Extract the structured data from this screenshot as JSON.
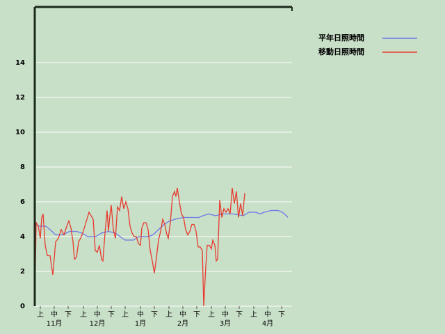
{
  "chart_data": {
    "type": "line",
    "xlim": [
      0,
      185
    ],
    "ylim": [
      0,
      17.2
    ],
    "yticks": [
      0,
      2,
      4,
      6,
      8,
      10,
      12,
      14
    ],
    "grid": true,
    "xticks": [
      {
        "value": 4,
        "label": "上"
      },
      {
        "value": 14,
        "label": "中"
      },
      {
        "value": 24,
        "label": "下"
      },
      {
        "value": 35,
        "label": "上"
      },
      {
        "value": 45,
        "label": "中"
      },
      {
        "value": 55,
        "label": "下"
      },
      {
        "value": 65,
        "label": "上"
      },
      {
        "value": 76,
        "label": "中"
      },
      {
        "value": 86,
        "label": "下"
      },
      {
        "value": 96.5,
        "label": "上"
      },
      {
        "value": 106.5,
        "label": "中"
      },
      {
        "value": 116.5,
        "label": "下"
      },
      {
        "value": 127,
        "label": "上"
      },
      {
        "value": 137,
        "label": "中"
      },
      {
        "value": 147,
        "label": "下"
      },
      {
        "value": 157.5,
        "label": "上"
      },
      {
        "value": 167.5,
        "label": "中"
      },
      {
        "value": 177.5,
        "label": "下"
      }
    ],
    "month_ticks": [
      {
        "value": 14,
        "label": "11月"
      },
      {
        "value": 45,
        "label": "12月"
      },
      {
        "value": 76,
        "label": "1月"
      },
      {
        "value": 106.5,
        "label": "2月"
      },
      {
        "value": 137,
        "label": "3月"
      },
      {
        "value": 167.5,
        "label": "4月"
      }
    ],
    "series": [
      {
        "name": "平年日照時間",
        "color": "#6b78e8",
        "x": [
          1,
          3,
          8,
          11,
          15,
          20,
          25,
          30,
          34,
          38,
          44,
          48,
          53,
          58,
          63,
          65,
          71,
          75,
          82,
          85,
          89,
          93,
          97,
          101,
          107,
          118,
          121,
          125,
          130,
          135,
          143,
          150,
          154,
          159,
          162,
          165,
          170,
          175,
          178,
          181,
          182
        ],
        "values": [
          4.7,
          4.6,
          4.6,
          4.4,
          4.1,
          4.1,
          4.3,
          4.3,
          4.2,
          4.0,
          4.0,
          4.2,
          4.3,
          4.2,
          3.9,
          3.8,
          3.8,
          4.0,
          4.0,
          4.1,
          4.4,
          4.7,
          4.9,
          5.0,
          5.1,
          5.1,
          5.2,
          5.3,
          5.2,
          5.3,
          5.3,
          5.2,
          5.4,
          5.4,
          5.3,
          5.4,
          5.5,
          5.5,
          5.4,
          5.2,
          5.1
        ]
      },
      {
        "name": "移動日照時間",
        "color": "#e83a2e",
        "x": [
          0,
          1,
          2.5,
          4,
          5,
          6,
          7.5,
          9,
          11,
          13,
          15,
          17,
          19,
          21,
          23,
          24.5,
          26,
          27.5,
          28.5,
          30,
          31.5,
          33,
          34.5,
          36,
          37.5,
          39,
          40.5,
          42,
          43.5,
          45,
          46.5,
          48,
          49,
          50.5,
          52,
          53,
          54,
          55,
          56.5,
          58,
          59.5,
          61,
          62.5,
          64,
          65.5,
          67,
          68.5,
          70,
          71.5,
          73,
          74.5,
          76,
          77,
          78.5,
          80,
          81.5,
          83,
          84.5,
          86,
          87.5,
          89,
          90.5,
          92,
          93.5,
          95,
          96,
          97.5,
          99,
          100.5,
          101.5,
          102.5,
          104,
          105.5,
          107,
          108.5,
          110,
          111.5,
          113,
          114.5,
          116,
          117.5,
          119,
          120.5,
          121.5,
          123,
          124,
          125.5,
          127,
          128,
          129.5,
          130.5,
          131.5,
          133,
          134.5,
          136,
          137.5,
          139,
          140.5,
          142,
          143.5,
          145,
          146.5,
          148,
          149.5,
          151
        ],
        "values": [
          0,
          4.8,
          4.6,
          3.9,
          5.1,
          5.3,
          3.5,
          2.9,
          2.9,
          1.8,
          3.7,
          3.9,
          4.4,
          4.1,
          4.6,
          4.9,
          4.5,
          3.7,
          2.7,
          2.8,
          3.7,
          3.9,
          4.2,
          4.6,
          5.0,
          5.4,
          5.2,
          5.0,
          3.2,
          3.1,
          3.5,
          2.7,
          2.6,
          4.2,
          5.5,
          4.3,
          5.2,
          5.8,
          4.4,
          3.9,
          5.7,
          5.5,
          6.3,
          5.6,
          6.0,
          5.6,
          4.6,
          4.2,
          4.0,
          4.0,
          3.6,
          3.5,
          4.5,
          4.8,
          4.8,
          4.4,
          3.2,
          2.6,
          1.9,
          2.8,
          3.8,
          4.3,
          5.0,
          4.7,
          4.1,
          3.9,
          4.8,
          6.3,
          6.6,
          6.3,
          6.8,
          6.0,
          5.3,
          5.1,
          4.4,
          4.1,
          4.3,
          4.7,
          4.7,
          4.3,
          3.4,
          3.4,
          3.2,
          0,
          2.3,
          3.5,
          3.5,
          3.3,
          3.8,
          3.5,
          2.6,
          2.7,
          6.1,
          5.1,
          5.6,
          5.4,
          5.6,
          5.3,
          6.8,
          5.9,
          6.6,
          5.1,
          5.9,
          5.2,
          6.5
        ]
      }
    ]
  }
}
